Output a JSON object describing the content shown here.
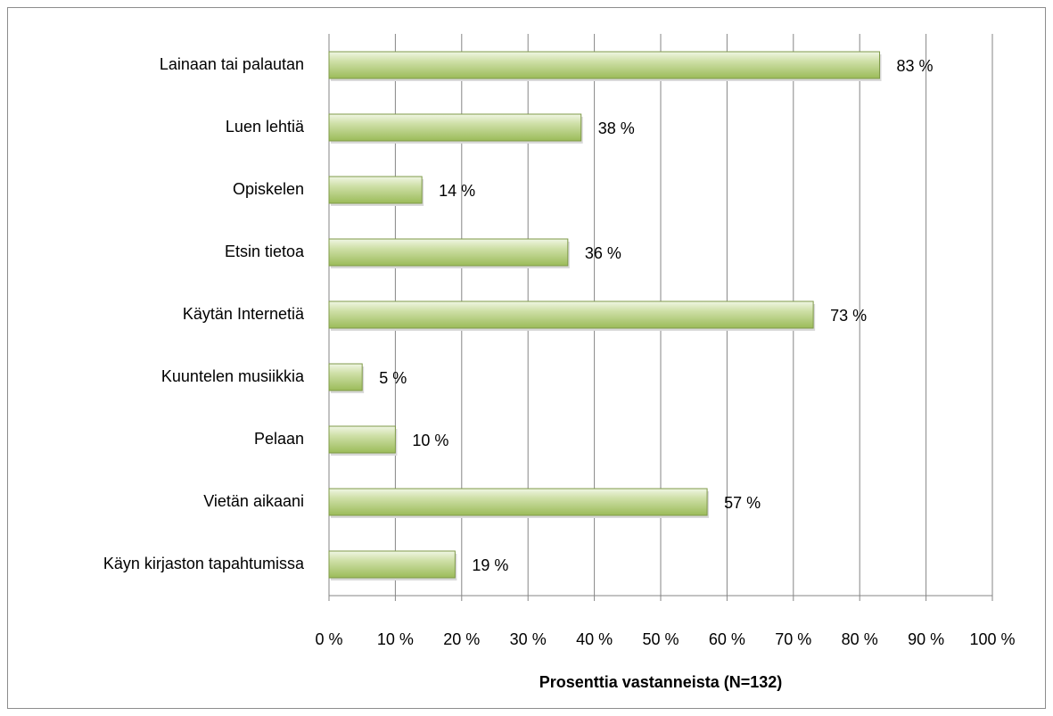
{
  "chart_data": {
    "type": "bar",
    "orientation": "horizontal",
    "x_label": "Prosenttia vastanneista  (N=132)",
    "categories": [
      "Lainaan tai palautan",
      "Luen lehtiä",
      "Opiskelen",
      "Etsin tietoa",
      "Käytän Internetiä",
      "Kuuntelen musiikkia",
      "Pelaan",
      "Vietän aikaani",
      "Käyn kirjaston tapahtumissa"
    ],
    "values": [
      83,
      38,
      14,
      36,
      73,
      5,
      10,
      57,
      19
    ],
    "value_labels": [
      "83 %",
      "38 %",
      "14 %",
      "36 %",
      "73 %",
      "5 %",
      "10 %",
      "57 %",
      "19 %"
    ],
    "color": "#9bbb59",
    "xlim": [
      0,
      100
    ],
    "xticks": [
      {
        "value": 0,
        "label": "0 %"
      },
      {
        "value": 10,
        "label": "10 %"
      },
      {
        "value": 20,
        "label": "20 %"
      },
      {
        "value": 30,
        "label": "30 %"
      },
      {
        "value": 40,
        "label": "40 %"
      },
      {
        "value": 50,
        "label": "50 %"
      },
      {
        "value": 60,
        "label": "60 %"
      },
      {
        "value": 70,
        "label": "70 %"
      },
      {
        "value": 80,
        "label": "80 %"
      },
      {
        "value": 90,
        "label": "90 %"
      },
      {
        "value": 100,
        "label": "100 %"
      }
    ],
    "grid": true
  }
}
